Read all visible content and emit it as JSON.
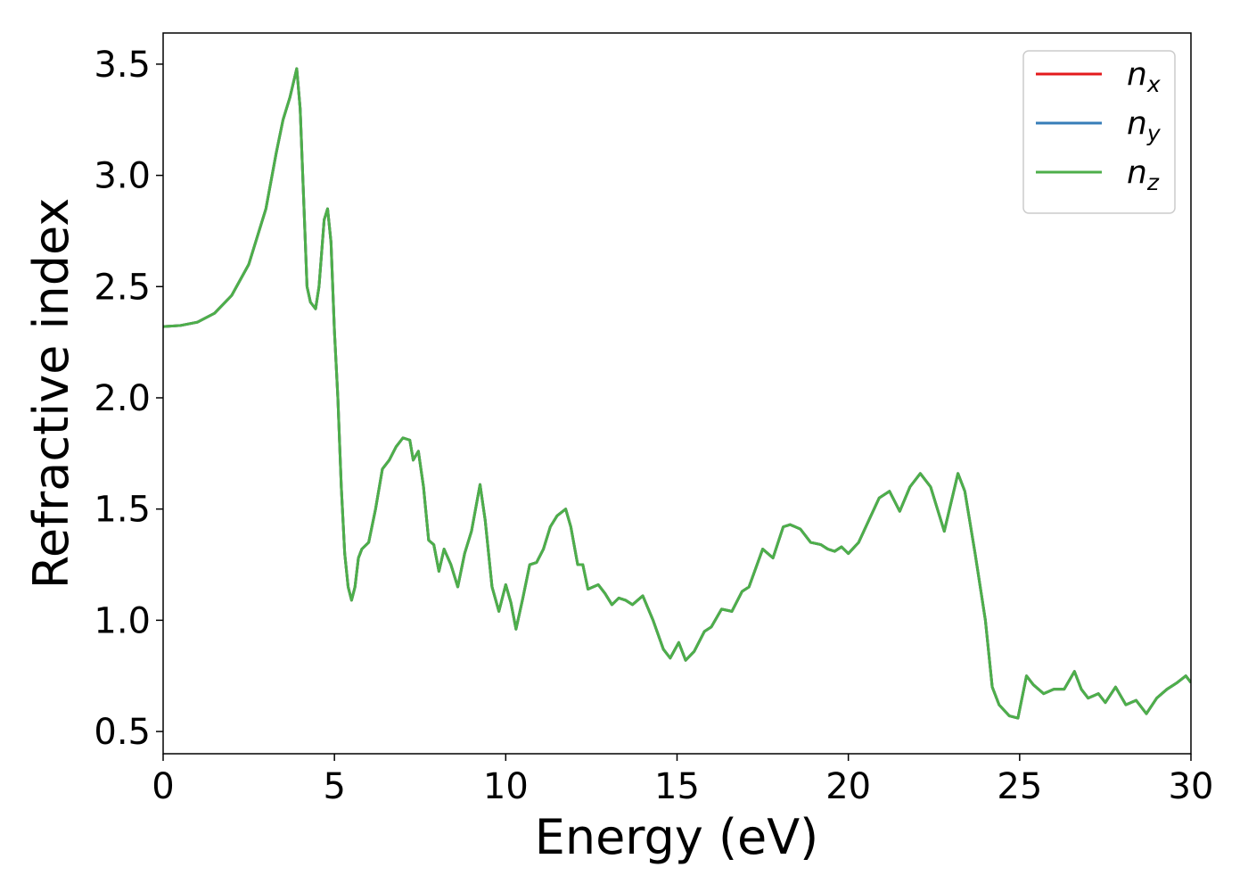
{
  "chart_data": {
    "type": "line",
    "xlabel": "Energy (eV)",
    "ylabel": "Refractive index",
    "xlim": [
      0,
      30
    ],
    "ylim": [
      0.4,
      3.64
    ],
    "xticks": [
      0,
      5,
      10,
      15,
      20,
      25,
      30
    ],
    "yticks": [
      0.5,
      {
        "value": 1,
        "label": "1.0"
      },
      1.5,
      {
        "value": 2,
        "label": "2.0"
      },
      2.5,
      {
        "value": 3,
        "label": "3.0"
      },
      3.5
    ],
    "legend": "upper right",
    "x": [
      0,
      0.5,
      1.0,
      1.5,
      2.0,
      2.5,
      3.0,
      3.3,
      3.5,
      3.7,
      3.9,
      4.0,
      4.1,
      4.2,
      4.3,
      4.45,
      4.55,
      4.7,
      4.8,
      4.9,
      5.0,
      5.1,
      5.2,
      5.3,
      5.4,
      5.5,
      5.6,
      5.7,
      5.8,
      6.0,
      6.2,
      6.4,
      6.6,
      6.8,
      7.0,
      7.2,
      7.3,
      7.45,
      7.6,
      7.75,
      7.9,
      8.05,
      8.2,
      8.4,
      8.6,
      8.8,
      9.0,
      9.25,
      9.4,
      9.6,
      9.8,
      10.0,
      10.15,
      10.3,
      10.5,
      10.7,
      10.9,
      11.1,
      11.3,
      11.5,
      11.75,
      11.9,
      12.1,
      12.25,
      12.4,
      12.7,
      12.9,
      13.1,
      13.3,
      13.5,
      13.7,
      14.0,
      14.3,
      14.6,
      14.8,
      15.05,
      15.25,
      15.5,
      15.8,
      16.0,
      16.3,
      16.6,
      16.9,
      17.1,
      17.5,
      17.8,
      18.1,
      18.3,
      18.6,
      18.9,
      19.2,
      19.4,
      19.6,
      19.8,
      20.0,
      20.3,
      20.6,
      20.9,
      21.2,
      21.5,
      21.8,
      22.1,
      22.4,
      22.6,
      22.8,
      23.2,
      23.4,
      23.7,
      24.0,
      24.2,
      24.4,
      24.7,
      24.95,
      25.2,
      25.4,
      25.7,
      26.0,
      26.3,
      26.6,
      26.8,
      27.0,
      27.3,
      27.5,
      27.8,
      28.1,
      28.4,
      28.7,
      29.0,
      29.3,
      29.6,
      29.85,
      30.0
    ],
    "series": [
      {
        "name": "nx",
        "color": "#e41a1c",
        "values": [
          2.32,
          2.325,
          2.34,
          2.38,
          2.46,
          2.6,
          2.85,
          3.1,
          3.25,
          3.35,
          3.48,
          3.3,
          2.9,
          2.5,
          2.43,
          2.4,
          2.5,
          2.8,
          2.85,
          2.7,
          2.3,
          2.0,
          1.6,
          1.3,
          1.15,
          1.09,
          1.15,
          1.28,
          1.32,
          1.35,
          1.5,
          1.68,
          1.72,
          1.78,
          1.82,
          1.81,
          1.72,
          1.76,
          1.6,
          1.36,
          1.34,
          1.22,
          1.32,
          1.25,
          1.15,
          1.3,
          1.4,
          1.61,
          1.45,
          1.15,
          1.04,
          1.16,
          1.08,
          0.96,
          1.1,
          1.25,
          1.26,
          1.32,
          1.42,
          1.47,
          1.5,
          1.42,
          1.25,
          1.25,
          1.14,
          1.16,
          1.12,
          1.07,
          1.1,
          1.09,
          1.07,
          1.11,
          1.0,
          0.87,
          0.83,
          0.9,
          0.82,
          0.86,
          0.95,
          0.97,
          1.05,
          1.04,
          1.13,
          1.15,
          1.32,
          1.28,
          1.42,
          1.43,
          1.41,
          1.35,
          1.34,
          1.32,
          1.31,
          1.33,
          1.3,
          1.35,
          1.45,
          1.55,
          1.58,
          1.49,
          1.6,
          1.66,
          1.6,
          1.5,
          1.4,
          1.66,
          1.58,
          1.3,
          1.0,
          0.7,
          0.62,
          0.57,
          0.56,
          0.75,
          0.71,
          0.67,
          0.69,
          0.69,
          0.77,
          0.69,
          0.65,
          0.67,
          0.63,
          0.7,
          0.62,
          0.64,
          0.58,
          0.65,
          0.69,
          0.72,
          0.75,
          0.72
        ]
      },
      {
        "name": "ny",
        "color": "#377eb8",
        "values": [
          2.32,
          2.325,
          2.34,
          2.38,
          2.46,
          2.6,
          2.85,
          3.1,
          3.25,
          3.35,
          3.48,
          3.3,
          2.9,
          2.5,
          2.43,
          2.4,
          2.5,
          2.8,
          2.85,
          2.7,
          2.3,
          2.0,
          1.6,
          1.3,
          1.15,
          1.09,
          1.15,
          1.28,
          1.32,
          1.35,
          1.5,
          1.68,
          1.72,
          1.78,
          1.82,
          1.81,
          1.72,
          1.76,
          1.6,
          1.36,
          1.34,
          1.22,
          1.32,
          1.25,
          1.15,
          1.3,
          1.4,
          1.61,
          1.45,
          1.15,
          1.04,
          1.16,
          1.08,
          0.96,
          1.1,
          1.25,
          1.26,
          1.32,
          1.42,
          1.47,
          1.5,
          1.42,
          1.25,
          1.25,
          1.14,
          1.16,
          1.12,
          1.07,
          1.1,
          1.09,
          1.07,
          1.11,
          1.0,
          0.87,
          0.83,
          0.9,
          0.82,
          0.86,
          0.95,
          0.97,
          1.05,
          1.04,
          1.13,
          1.15,
          1.32,
          1.28,
          1.42,
          1.43,
          1.41,
          1.35,
          1.34,
          1.32,
          1.31,
          1.33,
          1.3,
          1.35,
          1.45,
          1.55,
          1.58,
          1.49,
          1.6,
          1.66,
          1.6,
          1.5,
          1.4,
          1.66,
          1.58,
          1.3,
          1.0,
          0.7,
          0.62,
          0.57,
          0.56,
          0.75,
          0.71,
          0.67,
          0.69,
          0.69,
          0.77,
          0.69,
          0.65,
          0.67,
          0.63,
          0.7,
          0.62,
          0.64,
          0.58,
          0.65,
          0.69,
          0.72,
          0.75,
          0.72
        ]
      },
      {
        "name": "nz",
        "color": "#4daf4a",
        "values": [
          2.32,
          2.325,
          2.34,
          2.38,
          2.46,
          2.6,
          2.85,
          3.1,
          3.25,
          3.35,
          3.48,
          3.3,
          2.9,
          2.5,
          2.43,
          2.4,
          2.5,
          2.8,
          2.85,
          2.7,
          2.3,
          2.0,
          1.6,
          1.3,
          1.15,
          1.09,
          1.15,
          1.28,
          1.32,
          1.35,
          1.5,
          1.68,
          1.72,
          1.78,
          1.82,
          1.81,
          1.72,
          1.76,
          1.6,
          1.36,
          1.34,
          1.22,
          1.32,
          1.25,
          1.15,
          1.3,
          1.4,
          1.61,
          1.45,
          1.15,
          1.04,
          1.16,
          1.08,
          0.96,
          1.1,
          1.25,
          1.26,
          1.32,
          1.42,
          1.47,
          1.5,
          1.42,
          1.25,
          1.25,
          1.14,
          1.16,
          1.12,
          1.07,
          1.1,
          1.09,
          1.07,
          1.11,
          1.0,
          0.87,
          0.83,
          0.9,
          0.82,
          0.86,
          0.95,
          0.97,
          1.05,
          1.04,
          1.13,
          1.15,
          1.32,
          1.28,
          1.42,
          1.43,
          1.41,
          1.35,
          1.34,
          1.32,
          1.31,
          1.33,
          1.3,
          1.35,
          1.45,
          1.55,
          1.58,
          1.49,
          1.6,
          1.66,
          1.6,
          1.5,
          1.4,
          1.66,
          1.58,
          1.3,
          1.0,
          0.7,
          0.62,
          0.57,
          0.56,
          0.75,
          0.71,
          0.67,
          0.69,
          0.69,
          0.77,
          0.69,
          0.65,
          0.67,
          0.63,
          0.7,
          0.62,
          0.64,
          0.58,
          0.65,
          0.69,
          0.72,
          0.75,
          0.72
        ]
      }
    ]
  }
}
